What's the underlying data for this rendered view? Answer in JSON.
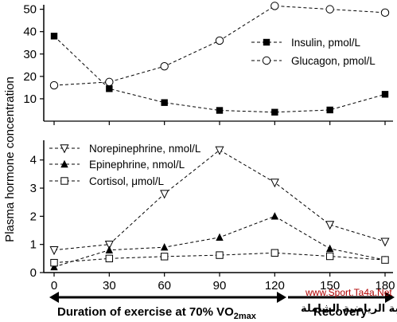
{
  "chart_data": [
    {
      "type": "line",
      "title": "",
      "xlabel": "",
      "ylabel": "",
      "x": [
        0,
        30,
        60,
        90,
        120,
        150,
        180
      ],
      "ylim": [
        0,
        52
      ],
      "yticks": [
        10,
        20,
        30,
        40,
        50
      ],
      "legend_position": "right",
      "series": [
        {
          "name": "Insulin, pmol/L",
          "marker": "filled-square",
          "values": [
            38,
            14.5,
            8.3,
            4.8,
            4,
            5,
            12
          ]
        },
        {
          "name": "Glucagon, pmol/L",
          "marker": "open-circle",
          "values": [
            16,
            17.5,
            24.5,
            36,
            51.5,
            50,
            48.5
          ]
        }
      ]
    },
    {
      "type": "line",
      "title": "",
      "xlabel": "Duration of exercise at 70% VO",
      "xlabel_subscript": "2max",
      "ylabel": "",
      "x": [
        0,
        30,
        60,
        90,
        120,
        150,
        180
      ],
      "xticks": [
        "0",
        "30",
        "60",
        "90",
        "120",
        "150",
        "180"
      ],
      "ylim": [
        0,
        4.7
      ],
      "yticks": [
        0,
        1,
        2,
        3,
        4
      ],
      "legend_position": "top-left",
      "series": [
        {
          "name": "Norepinephrine, nmol/L",
          "marker": "open-triangle-down",
          "values": [
            0.8,
            1.0,
            2.8,
            4.35,
            3.2,
            1.7,
            1.1
          ]
        },
        {
          "name": "Epinephrine, nmol/L",
          "marker": "filled-triangle-up",
          "values": [
            0.2,
            0.8,
            0.9,
            1.25,
            2.0,
            0.85,
            0.45
          ]
        },
        {
          "name": "Cortisol, μmol/L",
          "marker": "open-square",
          "values": [
            0.35,
            0.5,
            0.57,
            0.62,
            0.7,
            0.58,
            0.45
          ]
        }
      ]
    }
  ],
  "shared_ylabel": "Plasma hormone concentration",
  "recovery_label": "Recovery",
  "watermark": {
    "url": "www.Sport.Ta4a.Net",
    "arabic": "المكتبة الرياضية الشاملة"
  }
}
